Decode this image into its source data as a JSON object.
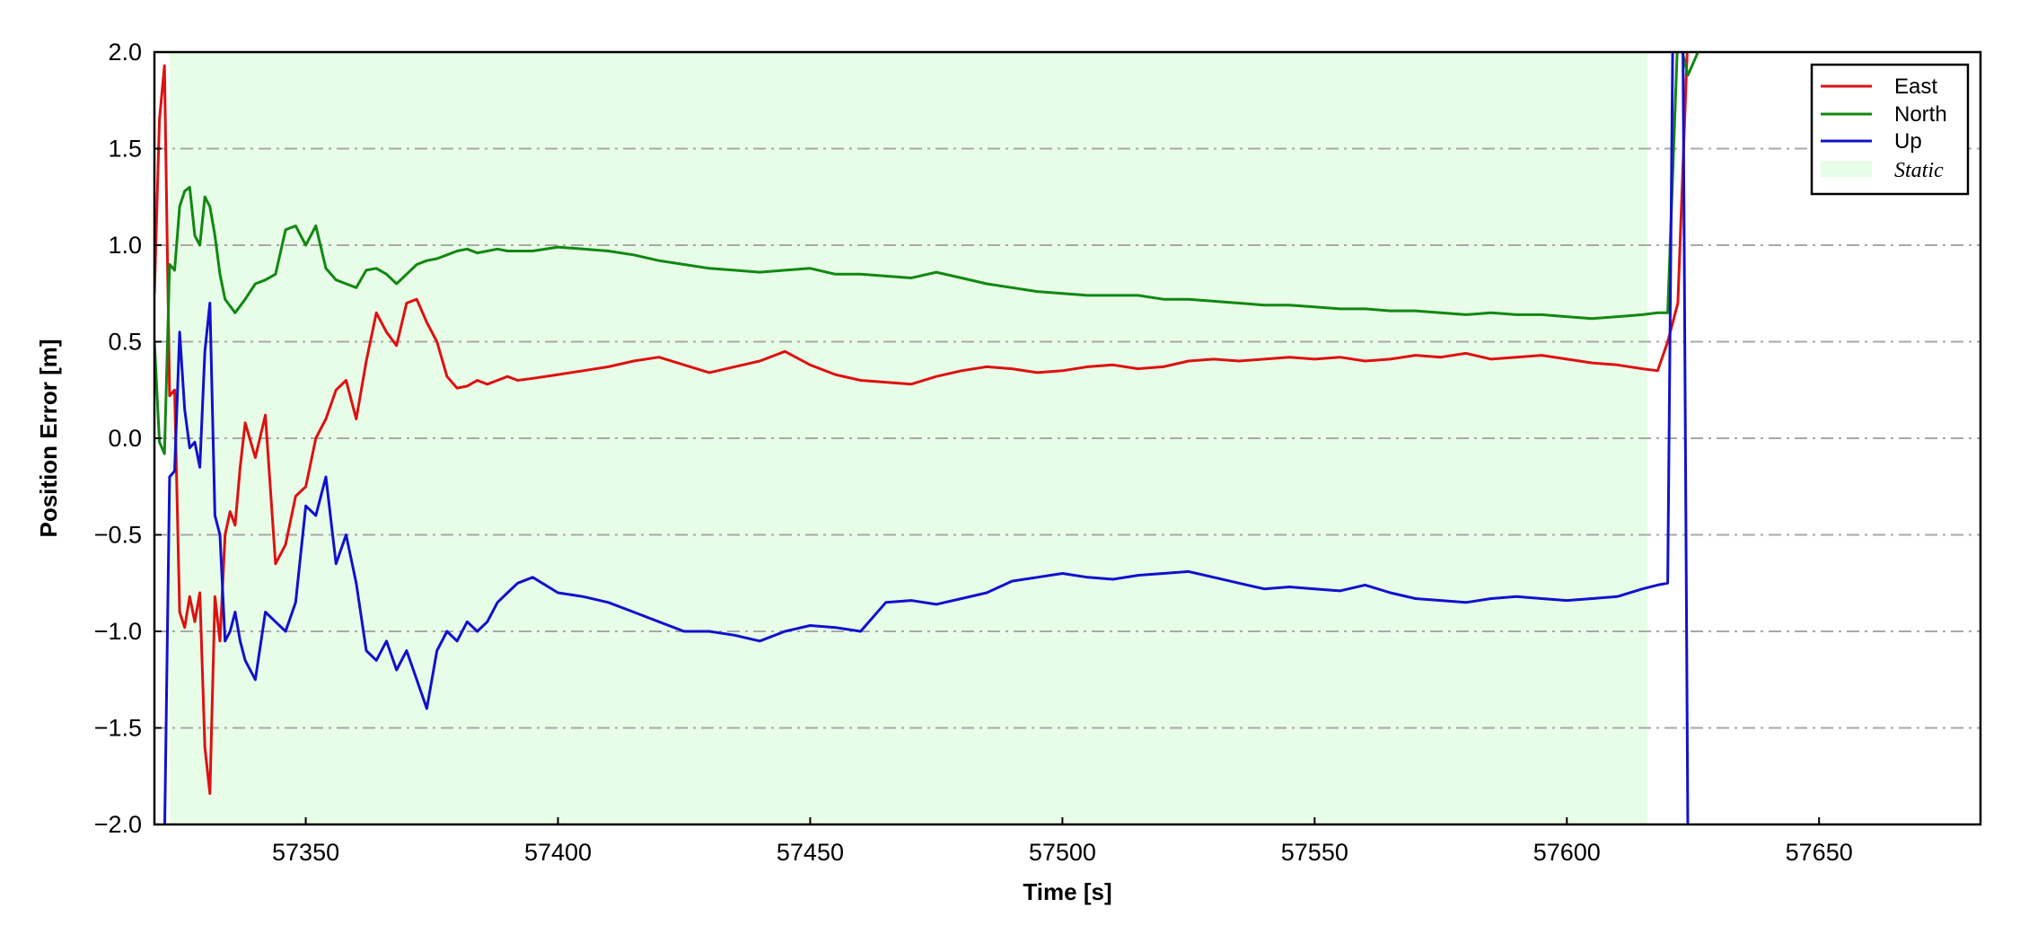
{
  "chart_data": {
    "type": "line",
    "xlabel": "Time [s]",
    "ylabel": "Position Error [m]",
    "xlim": [
      57320,
      57682
    ],
    "ylim": [
      -2.0,
      2.0
    ],
    "x_ticks": [
      57350,
      57400,
      57450,
      57500,
      57550,
      57600,
      57650
    ],
    "x_tick_labels": [
      "57350",
      "57400",
      "57450",
      "57500",
      "57550",
      "57600",
      "57650"
    ],
    "y_ticks": [
      -2.0,
      -1.5,
      -1.0,
      -0.5,
      0.0,
      0.5,
      1.0,
      1.5,
      2.0
    ],
    "y_tick_labels": [
      "−2.0",
      "−1.5",
      "−1.0",
      "−0.5",
      "0.0",
      "0.5",
      "1.0",
      "1.5",
      "2.0"
    ],
    "grid": "horizontal dash-dot",
    "legend_position": "top-right",
    "static_period": {
      "label": "Static",
      "x_start": 57323,
      "x_end": 57616,
      "color": "#e8fde8"
    },
    "series": [
      {
        "name": "East",
        "color": "#dd1111",
        "x": [
          57320,
          57321,
          57322,
          57323,
          57324,
          57325,
          57326,
          57327,
          57328,
          57329,
          57330,
          57331,
          57332,
          57333,
          57334,
          57335,
          57336,
          57337,
          57338,
          57340,
          57342,
          57344,
          57346,
          57348,
          57350,
          57352,
          57354,
          57356,
          57358,
          57360,
          57362,
          57364,
          57366,
          57368,
          57370,
          57372,
          57374,
          57376,
          57378,
          57380,
          57382,
          57384,
          57386,
          57388,
          57390,
          57392,
          57395,
          57400,
          57405,
          57410,
          57415,
          57420,
          57425,
          57430,
          57435,
          57440,
          57445,
          57450,
          57455,
          57460,
          57465,
          57470,
          57475,
          57480,
          57485,
          57490,
          57495,
          57500,
          57505,
          57510,
          57515,
          57520,
          57525,
          57530,
          57535,
          57540,
          57545,
          57550,
          57555,
          57560,
          57565,
          57570,
          57575,
          57580,
          57585,
          57590,
          57595,
          57600,
          57605,
          57610,
          57615,
          57618,
          57620,
          57622,
          57624
        ],
        "values": [
          0.75,
          1.65,
          1.93,
          0.22,
          0.25,
          -0.9,
          -0.98,
          -0.82,
          -0.95,
          -0.8,
          -1.6,
          -1.84,
          -0.82,
          -1.05,
          -0.5,
          -0.38,
          -0.45,
          -0.15,
          0.08,
          -0.1,
          0.12,
          -0.65,
          -0.55,
          -0.3,
          -0.25,
          0.0,
          0.1,
          0.25,
          0.3,
          0.1,
          0.4,
          0.65,
          0.55,
          0.48,
          0.7,
          0.72,
          0.6,
          0.5,
          0.32,
          0.26,
          0.27,
          0.3,
          0.28,
          0.3,
          0.32,
          0.3,
          0.31,
          0.33,
          0.35,
          0.37,
          0.4,
          0.42,
          0.38,
          0.34,
          0.37,
          0.4,
          0.45,
          0.38,
          0.33,
          0.3,
          0.29,
          0.28,
          0.32,
          0.35,
          0.37,
          0.36,
          0.34,
          0.35,
          0.37,
          0.38,
          0.36,
          0.37,
          0.4,
          0.41,
          0.4,
          0.41,
          0.42,
          0.41,
          0.42,
          0.4,
          0.41,
          0.43,
          0.42,
          0.44,
          0.41,
          0.42,
          0.43,
          0.41,
          0.39,
          0.38,
          0.36,
          0.35,
          0.5,
          0.7,
          2.1
        ]
      },
      {
        "name": "North",
        "color": "#118811",
        "x": [
          57320,
          57321,
          57322,
          57323,
          57324,
          57325,
          57326,
          57327,
          57328,
          57329,
          57330,
          57331,
          57332,
          57333,
          57334,
          57336,
          57338,
          57340,
          57342,
          57344,
          57346,
          57348,
          57350,
          57352,
          57354,
          57356,
          57358,
          57360,
          57362,
          57364,
          57366,
          57368,
          57370,
          57372,
          57374,
          57376,
          57378,
          57380,
          57382,
          57384,
          57386,
          57388,
          57390,
          57395,
          57400,
          57405,
          57410,
          57415,
          57420,
          57425,
          57430,
          57435,
          57440,
          57445,
          57450,
          57455,
          57460,
          57465,
          57470,
          57475,
          57480,
          57485,
          57490,
          57495,
          57500,
          57505,
          57510,
          57515,
          57520,
          57525,
          57530,
          57535,
          57540,
          57545,
          57550,
          57555,
          57560,
          57565,
          57570,
          57575,
          57580,
          57585,
          57590,
          57595,
          57600,
          57605,
          57610,
          57615,
          57618,
          57620,
          57622,
          57624,
          57626
        ],
        "values": [
          0.5,
          -0.02,
          -0.08,
          0.9,
          0.87,
          1.2,
          1.28,
          1.3,
          1.05,
          1.0,
          1.25,
          1.2,
          1.05,
          0.85,
          0.72,
          0.65,
          0.72,
          0.8,
          0.82,
          0.85,
          1.08,
          1.1,
          1.0,
          1.1,
          0.88,
          0.82,
          0.8,
          0.78,
          0.87,
          0.88,
          0.85,
          0.8,
          0.85,
          0.9,
          0.92,
          0.93,
          0.95,
          0.97,
          0.98,
          0.96,
          0.97,
          0.98,
          0.97,
          0.97,
          0.99,
          0.98,
          0.97,
          0.95,
          0.92,
          0.9,
          0.88,
          0.87,
          0.86,
          0.87,
          0.88,
          0.85,
          0.85,
          0.84,
          0.83,
          0.86,
          0.83,
          0.8,
          0.78,
          0.76,
          0.75,
          0.74,
          0.74,
          0.74,
          0.72,
          0.72,
          0.71,
          0.7,
          0.69,
          0.69,
          0.68,
          0.67,
          0.67,
          0.66,
          0.66,
          0.65,
          0.64,
          0.65,
          0.64,
          0.64,
          0.63,
          0.62,
          0.63,
          0.64,
          0.65,
          0.65,
          2.1,
          1.88,
          2.0
        ]
      },
      {
        "name": "Up",
        "color": "#1111cc",
        "x": [
          57322,
          57323,
          57324,
          57325,
          57326,
          57327,
          57328,
          57329,
          57330,
          57331,
          57332,
          57333,
          57334,
          57335,
          57336,
          57337,
          57338,
          57340,
          57342,
          57344,
          57346,
          57348,
          57350,
          57352,
          57354,
          57356,
          57358,
          57360,
          57362,
          57364,
          57366,
          57368,
          57370,
          57372,
          57374,
          57376,
          57378,
          57380,
          57382,
          57384,
          57386,
          57388,
          57390,
          57392,
          57395,
          57400,
          57405,
          57410,
          57415,
          57420,
          57425,
          57430,
          57435,
          57440,
          57445,
          57450,
          57455,
          57460,
          57465,
          57470,
          57475,
          57480,
          57485,
          57490,
          57495,
          57500,
          57505,
          57510,
          57515,
          57520,
          57525,
          57530,
          57535,
          57540,
          57545,
          57550,
          57555,
          57560,
          57565,
          57570,
          57575,
          57580,
          57585,
          57590,
          57595,
          57600,
          57605,
          57610,
          57615,
          57618,
          57620,
          57621,
          57622,
          57623,
          57624,
          57625
        ],
        "values": [
          -2.1,
          -0.2,
          -0.17,
          0.55,
          0.15,
          -0.05,
          -0.02,
          -0.15,
          0.45,
          0.7,
          -0.4,
          -0.5,
          -1.05,
          -1.0,
          -0.9,
          -1.05,
          -1.15,
          -1.25,
          -0.9,
          -0.95,
          -1.0,
          -0.85,
          -0.35,
          -0.4,
          -0.2,
          -0.65,
          -0.5,
          -0.75,
          -1.1,
          -1.15,
          -1.05,
          -1.2,
          -1.1,
          -1.25,
          -1.4,
          -1.1,
          -1.0,
          -1.05,
          -0.95,
          -1.0,
          -0.95,
          -0.85,
          -0.8,
          -0.75,
          -0.72,
          -0.8,
          -0.82,
          -0.85,
          -0.9,
          -0.95,
          -1.0,
          -1.0,
          -1.02,
          -1.05,
          -1.0,
          -0.97,
          -0.98,
          -1.0,
          -0.85,
          -0.84,
          -0.86,
          -0.83,
          -0.8,
          -0.74,
          -0.72,
          -0.7,
          -0.72,
          -0.73,
          -0.71,
          -0.7,
          -0.69,
          -0.72,
          -0.75,
          -0.78,
          -0.77,
          -0.78,
          -0.79,
          -0.76,
          -0.8,
          -0.83,
          -0.84,
          -0.85,
          -0.83,
          -0.82,
          -0.83,
          -0.84,
          -0.83,
          -0.82,
          -0.78,
          -0.76,
          -0.75,
          2.1,
          2.1,
          2.1,
          -2.1,
          -2.1
        ]
      }
    ]
  },
  "legend": {
    "items": [
      {
        "label": "East",
        "color": "#dd1111"
      },
      {
        "label": "North",
        "color": "#118811"
      },
      {
        "label": "Up",
        "color": "#1111cc"
      }
    ],
    "static_label": "Static",
    "static_color": "#e8fde8"
  }
}
